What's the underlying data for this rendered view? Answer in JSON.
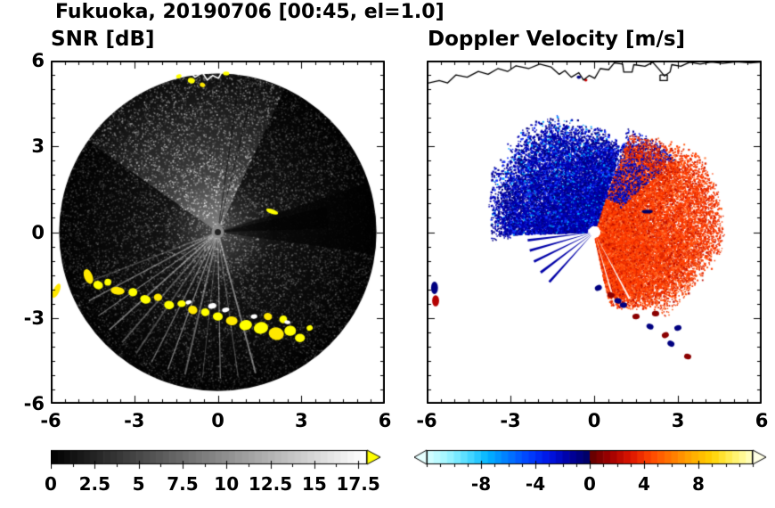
{
  "title": "Fukuoka, 20190706 [00:45, el=1.0]",
  "panels": {
    "snr": {
      "title": "SNR [dB]"
    },
    "doppler": {
      "title": "Doppler Velocity [m/s]"
    }
  },
  "axes": {
    "xlim": [
      -6,
      6
    ],
    "ylim": [
      -6,
      6
    ],
    "x_tick_values": [
      -6,
      -3,
      0,
      3,
      6
    ],
    "x_tick_labels": [
      "-6",
      "-3",
      "0",
      "3",
      "6"
    ],
    "y_tick_values": [
      6,
      3,
      0,
      -3,
      -6
    ],
    "y_tick_labels": [
      "6",
      "3",
      "0",
      "-3",
      "-6"
    ],
    "minor_tick_step": 0.5
  },
  "colorbars": {
    "snr": {
      "domain": [
        0,
        18
      ],
      "tick_values": [
        0,
        2.5,
        5,
        7.5,
        10,
        12.5,
        15,
        17.5
      ],
      "tick_labels": [
        "0",
        "2.5",
        "5",
        "7.5",
        "10",
        "12.5",
        "15",
        "17.5"
      ],
      "minor_step": 1.25,
      "stops": [
        [
          0,
          "#000000"
        ],
        [
          17.5,
          "#fafafa"
        ],
        [
          18,
          "#ffffff"
        ]
      ],
      "overflow_color": "#ffff00"
    },
    "doppler": {
      "domain": [
        -12,
        12
      ],
      "tick_values": [
        -8,
        -4,
        0,
        4,
        8
      ],
      "tick_labels": [
        "-8",
        "-4",
        "0",
        "4",
        "8"
      ],
      "minor_step": 1,
      "stops": [
        [
          -12,
          "#d8ffff"
        ],
        [
          -10.5,
          "#a0f5ff"
        ],
        [
          -9,
          "#50dcff"
        ],
        [
          -7.5,
          "#00b4ff"
        ],
        [
          -6,
          "#0078ff"
        ],
        [
          -4.5,
          "#0040ff"
        ],
        [
          -3,
          "#0014e6"
        ],
        [
          -1.5,
          "#0000a0"
        ],
        [
          -0.05,
          "#000060"
        ],
        [
          0.05,
          "#600000"
        ],
        [
          1.5,
          "#a00000"
        ],
        [
          3,
          "#dc1400"
        ],
        [
          4.5,
          "#ff4600"
        ],
        [
          6,
          "#ff7800"
        ],
        [
          7.5,
          "#ffaa00"
        ],
        [
          9,
          "#ffd200"
        ],
        [
          10.5,
          "#fff060"
        ],
        [
          12,
          "#ffffc8"
        ]
      ],
      "under_arrow_color": "#e6ffff",
      "over_arrow_color": "#ffffe6"
    }
  },
  "chart_data": [
    {
      "type": "heatmap",
      "title": "SNR [dB]",
      "xlabel": "",
      "ylabel": "",
      "xlim": [
        -6,
        6
      ],
      "ylim": [
        -6,
        6
      ],
      "colormap": {
        "domain": [
          0,
          17.5
        ],
        "colors": [
          "#000000",
          "#ffffff"
        ],
        "overflow": "#ffff00"
      },
      "scan_disk": {
        "center": [
          0,
          0
        ],
        "radius": 5.7
      },
      "speckle": {
        "n": 16000,
        "bright_boost": 2.1,
        "dark_factor": 0.3
      },
      "bright_sector_az": [
        -55,
        25
      ],
      "dark_sector_az": [
        72,
        98
      ],
      "ray_azimuths": [
        165,
        172,
        179,
        186,
        193,
        200,
        207,
        214,
        221,
        228,
        235,
        242,
        249
      ],
      "dark_ray_azimuths": [
        8,
        14
      ],
      "clutter_patches": [
        [
          -4.65,
          -1.55,
          0.3,
          0.55
        ],
        [
          -4.3,
          -1.85,
          0.35,
          0.3
        ],
        [
          -3.95,
          -1.75,
          0.25,
          0.25
        ],
        [
          -3.6,
          -2.05,
          0.5,
          0.28
        ],
        [
          -3.05,
          -2.1,
          0.32,
          0.3
        ],
        [
          -2.6,
          -2.35,
          0.38,
          0.3
        ],
        [
          -2.15,
          -2.28,
          0.3,
          0.26
        ],
        [
          -1.75,
          -2.55,
          0.36,
          0.3
        ],
        [
          -1.3,
          -2.5,
          0.3,
          0.24
        ],
        [
          -0.9,
          -2.72,
          0.34,
          0.3
        ],
        [
          -0.45,
          -2.8,
          0.3,
          0.28
        ],
        [
          0.0,
          -2.95,
          0.36,
          0.3
        ],
        [
          0.5,
          -3.1,
          0.42,
          0.32
        ],
        [
          1.0,
          -3.25,
          0.46,
          0.36
        ],
        [
          1.55,
          -3.35,
          0.52,
          0.42
        ],
        [
          2.1,
          -3.55,
          0.55,
          0.45
        ],
        [
          2.6,
          -3.45,
          0.42,
          0.36
        ],
        [
          2.95,
          -3.7,
          0.36,
          0.3
        ],
        [
          1.8,
          -2.95,
          0.3,
          0.26
        ],
        [
          2.35,
          -3.05,
          0.28,
          0.28
        ],
        [
          3.3,
          -3.35,
          0.22,
          0.2
        ],
        [
          -5.8,
          -2.05,
          0.22,
          0.55
        ],
        [
          1.95,
          0.72,
          0.45,
          0.16
        ],
        [
          -0.95,
          5.3,
          0.26,
          0.2
        ],
        [
          -0.55,
          5.15,
          0.2,
          0.16
        ],
        [
          0.3,
          5.55,
          0.22,
          0.14
        ],
        [
          -1.4,
          5.45,
          0.2,
          0.14
        ]
      ],
      "coast_white_patches": [
        [
          -0.2,
          -2.58,
          0.3,
          0.2
        ],
        [
          0.28,
          -2.72,
          0.26,
          0.16
        ],
        [
          1.3,
          -2.95,
          0.24,
          0.16
        ],
        [
          -1.05,
          -2.45,
          0.22,
          0.14
        ],
        [
          2.5,
          -3.15,
          0.22,
          0.14
        ]
      ],
      "coastline": [
        [
          [
            -6.0,
            5.2
          ],
          [
            -5.55,
            5.3
          ],
          [
            -5.25,
            5.22
          ],
          [
            -4.95,
            5.5
          ],
          [
            -4.55,
            5.42
          ],
          [
            -4.15,
            5.62
          ],
          [
            -3.8,
            5.52
          ],
          [
            -3.45,
            5.72
          ],
          [
            -3.1,
            5.62
          ],
          [
            -2.8,
            5.82
          ],
          [
            -2.35,
            5.72
          ],
          [
            -1.95,
            5.88
          ],
          [
            -1.55,
            5.78
          ],
          [
            -1.25,
            5.52
          ],
          [
            -1.05,
            5.65
          ],
          [
            -0.82,
            5.42
          ],
          [
            -0.55,
            5.58
          ],
          [
            -0.38,
            5.32
          ],
          [
            -0.18,
            5.48
          ],
          [
            0.02,
            5.38
          ],
          [
            0.22,
            5.72
          ],
          [
            0.52,
            5.68
          ],
          [
            0.72,
            5.92
          ],
          [
            1.02,
            5.88
          ],
          [
            1.06,
            5.6
          ],
          [
            1.36,
            5.6
          ],
          [
            1.42,
            5.86
          ],
          [
            1.82,
            5.8
          ],
          [
            2.1,
            5.94
          ],
          [
            2.32,
            5.7
          ],
          [
            2.52,
            5.46
          ],
          [
            2.72,
            5.6
          ],
          [
            2.78,
            5.86
          ],
          [
            3.1,
            5.8
          ],
          [
            3.42,
            5.94
          ],
          [
            3.8,
            5.88
          ],
          [
            4.2,
            5.95
          ],
          [
            4.6,
            5.9
          ],
          [
            5.1,
            5.96
          ],
          [
            5.6,
            5.92
          ],
          [
            6.0,
            5.95
          ]
        ],
        [
          [
            2.36,
            5.5
          ],
          [
            2.62,
            5.5
          ],
          [
            2.62,
            5.3
          ],
          [
            2.36,
            5.3
          ],
          [
            2.36,
            5.5
          ]
        ]
      ]
    },
    {
      "type": "heatmap",
      "title": "Doppler Velocity [m/s]",
      "xlabel": "",
      "ylabel": "",
      "xlim": [
        -6,
        6
      ],
      "ylim": [
        -6,
        6
      ],
      "colormap": {
        "domain": [
          -10,
          10
        ],
        "negative_colors": [
          "#00b4ff",
          "#0040ff",
          "#0000a0"
        ],
        "positive_colors": [
          "#a00000",
          "#ff4600",
          "#ffd200"
        ]
      },
      "negative_fan": {
        "az_range": [
          -92,
          18
        ],
        "r_min": 0.25,
        "n": 14000,
        "r_profile": [
          [
            -92,
            3.3
          ],
          [
            -60,
            3.9
          ],
          [
            -25,
            4.2
          ],
          [
            5,
            3.4
          ],
          [
            18,
            3.0
          ]
        ],
        "colors": [
          "#0000b4",
          "#000082",
          "#1432ff",
          "#00a0ff"
        ],
        "weights": [
          0.5,
          0.3,
          0.13,
          0.07
        ],
        "mean_value_mps": -6
      },
      "positive_fan": {
        "az_range": [
          20,
          168
        ],
        "r_min": 0.25,
        "n": 20000,
        "r_profile": [
          [
            20,
            3.3
          ],
          [
            55,
            4.4
          ],
          [
            95,
            4.3
          ],
          [
            120,
            3.8
          ],
          [
            150,
            3.0
          ],
          [
            168,
            2.5
          ]
        ],
        "colors": [
          "#ff3c00",
          "#ff5a14",
          "#e12800",
          "#c01000",
          "#ff8246"
        ],
        "weights": [
          0.42,
          0.2,
          0.2,
          0.1,
          0.08
        ],
        "mean_value_mps": 5
      },
      "scatter": [
        {
          "az": [
            18,
            48
          ],
          "r": [
            1.3,
            3.9
          ],
          "n": 900,
          "colors": [
            "#0000b4",
            "#000082",
            "#0a28ff"
          ],
          "size": 1.6
        },
        {
          "az": [
            55,
            100
          ],
          "r": [
            3.8,
            4.6
          ],
          "n": 500,
          "colors": [
            "#ff3c00",
            "#e12800"
          ],
          "size": 1.5
        },
        {
          "az": [
            20,
            55
          ],
          "r": [
            3.0,
            3.8
          ],
          "n": 350,
          "colors": [
            "#ff3c00",
            "#c01000"
          ],
          "size": 1.5
        },
        {
          "az": [
            100,
            140
          ],
          "r": [
            3.2,
            4.0
          ],
          "n": 250,
          "colors": [
            "#ff5a14",
            "#e12800"
          ],
          "size": 1.5
        },
        {
          "az": [
            -95,
            -60
          ],
          "r": [
            3.0,
            3.7
          ],
          "n": 250,
          "colors": [
            "#0000b4",
            "#000082"
          ],
          "size": 1.5
        }
      ],
      "blue_ray_azimuths": [
        222,
        233,
        244,
        254,
        263
      ],
      "white_ray_azimuths": [
        152,
        164,
        176,
        187,
        196,
        206,
        215,
        225,
        236,
        246,
        256
      ],
      "boundary_spots": [
        [
          0.15,
          -1.95,
          "#000080"
        ],
        [
          0.6,
          -2.2,
          "#8b0000"
        ],
        [
          1.05,
          -2.55,
          "#000080"
        ],
        [
          1.5,
          -2.95,
          "#8b0000"
        ],
        [
          2.0,
          -3.3,
          "#000080"
        ],
        [
          2.55,
          -3.6,
          "#8b0000"
        ],
        [
          3.0,
          -3.35,
          "#000080"
        ],
        [
          3.35,
          -4.35,
          "#8b0000"
        ],
        [
          2.2,
          -2.85,
          "#8b0000"
        ],
        [
          0.85,
          -2.4,
          "#000080"
        ],
        [
          2.75,
          -3.9,
          "#000080"
        ]
      ],
      "edge_patches": [
        [
          -5.72,
          -1.95,
          0.25,
          0.45,
          "#000080"
        ],
        [
          -5.68,
          -2.4,
          0.25,
          0.4,
          "#b40000"
        ],
        [
          1.9,
          0.72,
          0.4,
          0.14,
          "#000064"
        ],
        [
          -0.55,
          5.42,
          0.15,
          0.12,
          "#000080"
        ],
        [
          -0.3,
          5.32,
          0.12,
          0.1,
          "#c80000"
        ]
      ],
      "coastline": [
        [
          [
            -6.0,
            5.2
          ],
          [
            -5.55,
            5.3
          ],
          [
            -5.25,
            5.22
          ],
          [
            -4.95,
            5.5
          ],
          [
            -4.55,
            5.42
          ],
          [
            -4.15,
            5.62
          ],
          [
            -3.8,
            5.52
          ],
          [
            -3.45,
            5.72
          ],
          [
            -3.1,
            5.62
          ],
          [
            -2.8,
            5.82
          ],
          [
            -2.35,
            5.72
          ],
          [
            -1.95,
            5.88
          ],
          [
            -1.55,
            5.78
          ],
          [
            -1.25,
            5.52
          ],
          [
            -1.05,
            5.65
          ],
          [
            -0.82,
            5.42
          ],
          [
            -0.55,
            5.58
          ],
          [
            -0.38,
            5.32
          ],
          [
            -0.18,
            5.48
          ],
          [
            0.02,
            5.38
          ],
          [
            0.22,
            5.72
          ],
          [
            0.52,
            5.68
          ],
          [
            0.72,
            5.92
          ],
          [
            1.02,
            5.88
          ],
          [
            1.06,
            5.6
          ],
          [
            1.36,
            5.6
          ],
          [
            1.42,
            5.86
          ],
          [
            1.82,
            5.8
          ],
          [
            2.1,
            5.94
          ],
          [
            2.32,
            5.7
          ],
          [
            2.52,
            5.46
          ],
          [
            2.72,
            5.6
          ],
          [
            2.78,
            5.86
          ],
          [
            3.1,
            5.8
          ],
          [
            3.42,
            5.94
          ],
          [
            3.8,
            5.88
          ],
          [
            4.2,
            5.95
          ],
          [
            4.6,
            5.9
          ],
          [
            5.1,
            5.96
          ],
          [
            5.6,
            5.92
          ],
          [
            6.0,
            5.95
          ]
        ],
        [
          [
            2.36,
            5.5
          ],
          [
            2.62,
            5.5
          ],
          [
            2.62,
            5.3
          ],
          [
            2.36,
            5.3
          ],
          [
            2.36,
            5.5
          ]
        ]
      ]
    }
  ]
}
